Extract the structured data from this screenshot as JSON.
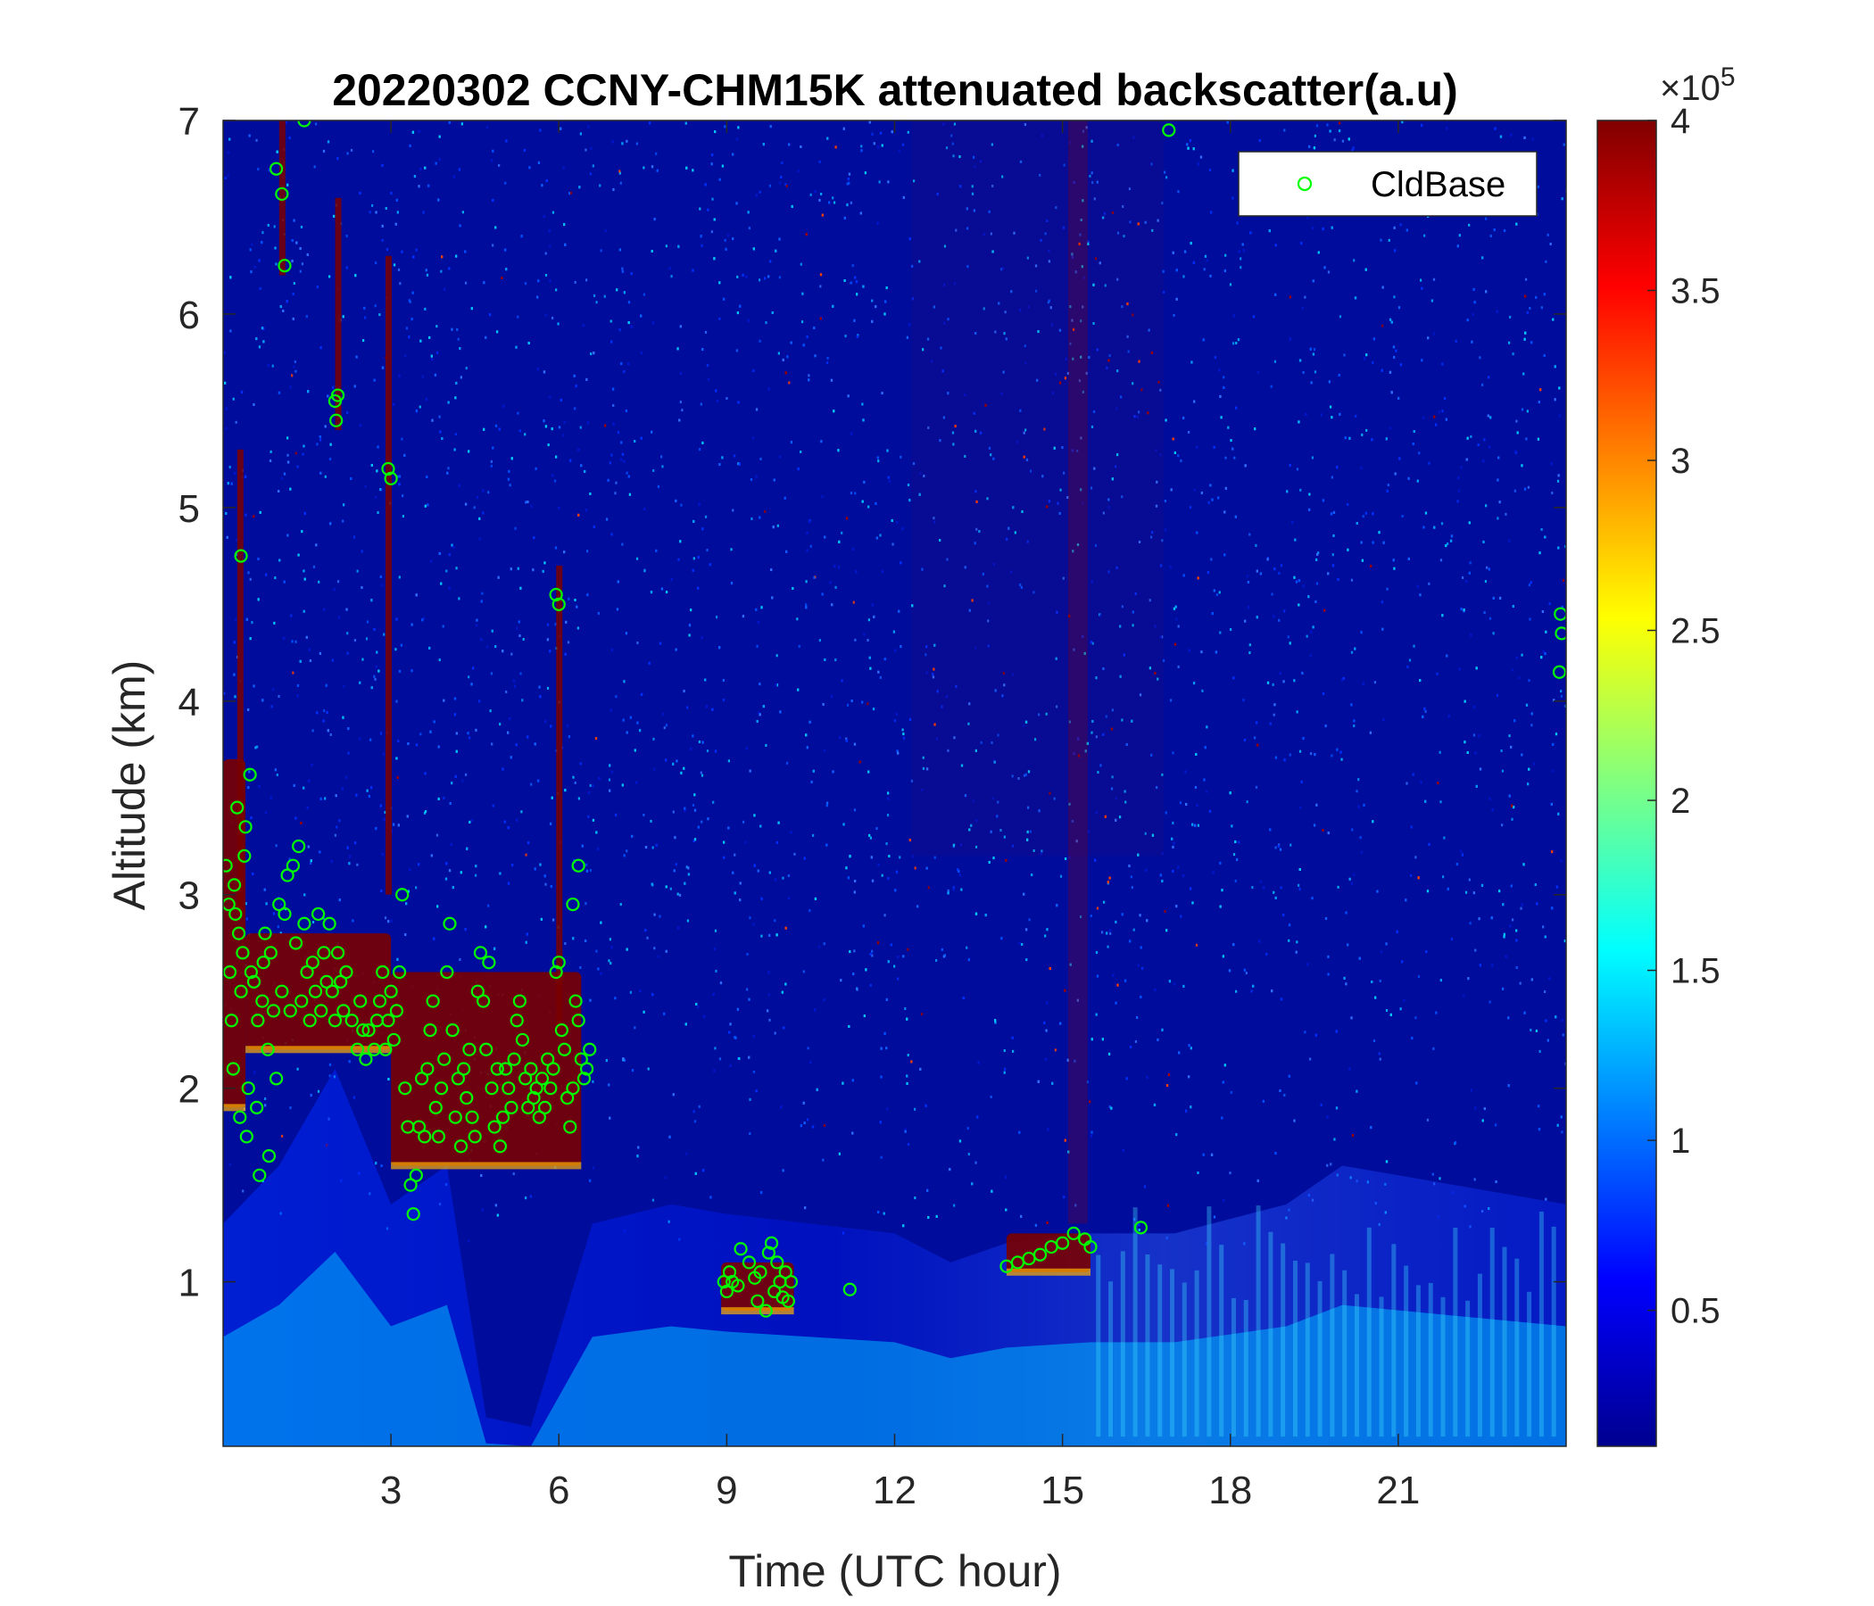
{
  "chart_data": {
    "type": "heatmap",
    "title": "20220302 CCNY-CHM15K attenuated backscatter(a.u)",
    "xlabel": "Time (UTC hour)",
    "ylabel": "Altitude (km)",
    "xlim": [
      0,
      24
    ],
    "ylim": [
      0.15,
      7
    ],
    "x_ticks": [
      3,
      6,
      9,
      12,
      15,
      18,
      21
    ],
    "y_ticks": [
      1,
      2,
      3,
      4,
      5,
      6,
      7
    ],
    "colorbar": {
      "colormap": "jet",
      "clim": [
        0.1,
        4
      ],
      "ticks": [
        0.5,
        1,
        1.5,
        2,
        2.5,
        3,
        3.5,
        4
      ],
      "exponent_label": "×10",
      "exponent_power": "5",
      "colors": [
        "#00008f",
        "#0000ff",
        "#0080ff",
        "#00ffff",
        "#80ff80",
        "#ffff00",
        "#ff8000",
        "#ff0000",
        "#800000"
      ]
    },
    "legend": {
      "position": "top-right",
      "entries": [
        {
          "label": "CldBase",
          "marker": "circle",
          "color": "#00ff00"
        }
      ]
    },
    "background_features": {
      "high_backscatter_layers": [
        {
          "t_start": 0.0,
          "t_end": 0.4,
          "z_bottom": 1.9,
          "z_top": 3.7
        },
        {
          "t_start": 0.4,
          "t_end": 3.0,
          "z_bottom": 2.2,
          "z_top": 2.8
        },
        {
          "t_start": 3.0,
          "t_end": 6.4,
          "z_bottom": 1.6,
          "z_top": 2.6
        },
        {
          "t_start": 8.9,
          "t_end": 10.2,
          "z_bottom": 0.85,
          "z_top": 1.1
        },
        {
          "t_start": 14.0,
          "t_end": 15.5,
          "z_bottom": 1.05,
          "z_top": 1.25
        }
      ],
      "boundary_layer_top_km": [
        [
          0.0,
          1.3
        ],
        [
          1.0,
          1.6
        ],
        [
          2.0,
          2.1
        ],
        [
          3.0,
          1.4
        ],
        [
          4.0,
          1.6
        ],
        [
          4.7,
          0.3
        ],
        [
          5.5,
          0.25
        ],
        [
          6.6,
          1.3
        ],
        [
          8.0,
          1.4
        ],
        [
          9.0,
          1.35
        ],
        [
          10.5,
          1.3
        ],
        [
          12.0,
          1.25
        ],
        [
          13.0,
          1.1
        ],
        [
          14.0,
          1.2
        ],
        [
          15.5,
          1.25
        ],
        [
          17.0,
          1.25
        ],
        [
          19.0,
          1.4
        ],
        [
          20.0,
          1.6
        ],
        [
          22.0,
          1.5
        ],
        [
          24.0,
          1.4
        ]
      ]
    },
    "series": [
      {
        "name": "CldBase",
        "points": [
          [
            0.05,
            3.15
          ],
          [
            0.1,
            2.95
          ],
          [
            0.12,
            2.6
          ],
          [
            0.15,
            2.35
          ],
          [
            0.18,
            2.1
          ],
          [
            0.2,
            3.05
          ],
          [
            0.22,
            2.9
          ],
          [
            0.25,
            3.45
          ],
          [
            0.28,
            2.8
          ],
          [
            0.3,
            1.85
          ],
          [
            0.32,
            2.5
          ],
          [
            0.35,
            2.7
          ],
          [
            0.38,
            3.2
          ],
          [
            0.4,
            3.35
          ],
          [
            0.42,
            1.75
          ],
          [
            0.45,
            2.0
          ],
          [
            0.48,
            3.62
          ],
          [
            0.5,
            2.6
          ],
          [
            0.55,
            2.55
          ],
          [
            0.6,
            1.9
          ],
          [
            0.62,
            2.35
          ],
          [
            0.65,
            1.55
          ],
          [
            0.7,
            2.45
          ],
          [
            0.72,
            2.65
          ],
          [
            0.75,
            2.8
          ],
          [
            0.8,
            2.2
          ],
          [
            0.82,
            1.65
          ],
          [
            0.85,
            2.7
          ],
          [
            0.9,
            2.4
          ],
          [
            0.95,
            2.05
          ],
          [
            1.0,
            2.95
          ],
          [
            1.05,
            2.5
          ],
          [
            1.1,
            2.9
          ],
          [
            1.15,
            3.1
          ],
          [
            1.2,
            2.4
          ],
          [
            1.25,
            3.15
          ],
          [
            1.3,
            2.75
          ],
          [
            1.35,
            3.25
          ],
          [
            1.4,
            2.45
          ],
          [
            1.45,
            2.85
          ],
          [
            1.5,
            2.6
          ],
          [
            1.55,
            2.35
          ],
          [
            1.6,
            2.65
          ],
          [
            1.65,
            2.5
          ],
          [
            1.7,
            2.9
          ],
          [
            1.75,
            2.4
          ],
          [
            1.8,
            2.7
          ],
          [
            1.85,
            2.55
          ],
          [
            1.9,
            2.85
          ],
          [
            1.95,
            2.5
          ],
          [
            2.0,
            2.35
          ],
          [
            2.05,
            2.7
          ],
          [
            2.1,
            2.55
          ],
          [
            2.15,
            2.4
          ],
          [
            2.2,
            2.6
          ],
          [
            2.3,
            2.35
          ],
          [
            2.4,
            2.2
          ],
          [
            2.45,
            2.45
          ],
          [
            2.5,
            2.3
          ],
          [
            2.55,
            2.15
          ],
          [
            2.6,
            2.3
          ],
          [
            2.7,
            2.2
          ],
          [
            2.75,
            2.35
          ],
          [
            2.8,
            2.45
          ],
          [
            2.85,
            2.6
          ],
          [
            2.9,
            2.2
          ],
          [
            2.95,
            2.35
          ],
          [
            3.0,
            2.5
          ],
          [
            3.05,
            2.25
          ],
          [
            3.1,
            2.4
          ],
          [
            3.15,
            2.6
          ],
          [
            3.2,
            3.0
          ],
          [
            3.25,
            2.0
          ],
          [
            3.3,
            1.8
          ],
          [
            3.35,
            1.5
          ],
          [
            3.4,
            1.35
          ],
          [
            3.45,
            1.55
          ],
          [
            3.5,
            1.8
          ],
          [
            3.55,
            2.05
          ],
          [
            3.6,
            1.75
          ],
          [
            3.65,
            2.1
          ],
          [
            3.7,
            2.3
          ],
          [
            3.75,
            2.45
          ],
          [
            3.8,
            1.9
          ],
          [
            3.85,
            1.75
          ],
          [
            3.9,
            2.0
          ],
          [
            3.95,
            2.15
          ],
          [
            4.0,
            2.6
          ],
          [
            4.05,
            2.85
          ],
          [
            4.1,
            2.3
          ],
          [
            4.15,
            1.85
          ],
          [
            4.2,
            2.05
          ],
          [
            4.25,
            1.7
          ],
          [
            4.3,
            2.1
          ],
          [
            4.35,
            1.95
          ],
          [
            4.4,
            2.2
          ],
          [
            4.45,
            1.85
          ],
          [
            4.5,
            1.75
          ],
          [
            4.55,
            2.5
          ],
          [
            4.6,
            2.7
          ],
          [
            4.65,
            2.45
          ],
          [
            4.7,
            2.2
          ],
          [
            4.75,
            2.65
          ],
          [
            4.8,
            2.0
          ],
          [
            4.85,
            1.8
          ],
          [
            4.9,
            2.1
          ],
          [
            4.95,
            1.7
          ],
          [
            5.0,
            1.85
          ],
          [
            5.05,
            2.1
          ],
          [
            5.1,
            2.0
          ],
          [
            5.15,
            1.9
          ],
          [
            5.2,
            2.15
          ],
          [
            5.25,
            2.35
          ],
          [
            5.3,
            2.45
          ],
          [
            5.35,
            2.25
          ],
          [
            5.4,
            2.05
          ],
          [
            5.45,
            1.9
          ],
          [
            5.5,
            2.1
          ],
          [
            5.55,
            1.95
          ],
          [
            5.6,
            2.0
          ],
          [
            5.65,
            1.85
          ],
          [
            5.7,
            2.05
          ],
          [
            5.75,
            1.9
          ],
          [
            5.8,
            2.15
          ],
          [
            5.85,
            2.0
          ],
          [
            5.9,
            2.1
          ],
          [
            5.95,
            2.6
          ],
          [
            6.0,
            2.65
          ],
          [
            6.05,
            2.3
          ],
          [
            6.1,
            2.2
          ],
          [
            6.15,
            1.95
          ],
          [
            6.2,
            1.8
          ],
          [
            6.25,
            2.0
          ],
          [
            6.3,
            2.45
          ],
          [
            6.35,
            2.35
          ],
          [
            6.4,
            2.15
          ],
          [
            6.45,
            2.05
          ],
          [
            6.5,
            2.1
          ],
          [
            6.55,
            2.2
          ],
          [
            6.35,
            3.15
          ],
          [
            6.25,
            2.95
          ],
          [
            0.95,
            6.75
          ],
          [
            1.05,
            6.62
          ],
          [
            1.1,
            6.25
          ],
          [
            1.45,
            7.0
          ],
          [
            2.0,
            5.55
          ],
          [
            2.02,
            5.45
          ],
          [
            2.05,
            5.58
          ],
          [
            2.95,
            5.2
          ],
          [
            3.0,
            5.15
          ],
          [
            5.95,
            4.55
          ],
          [
            6.0,
            4.5
          ],
          [
            0.32,
            4.75
          ],
          [
            8.95,
            1.0
          ],
          [
            9.0,
            0.95
          ],
          [
            9.05,
            1.05
          ],
          [
            9.1,
            1.0
          ],
          [
            9.2,
            0.98
          ],
          [
            9.25,
            1.17
          ],
          [
            9.4,
            1.1
          ],
          [
            9.5,
            1.02
          ],
          [
            9.55,
            0.9
          ],
          [
            9.6,
            1.05
          ],
          [
            9.7,
            0.85
          ],
          [
            9.75,
            1.15
          ],
          [
            9.8,
            1.2
          ],
          [
            9.85,
            0.95
          ],
          [
            9.9,
            1.1
          ],
          [
            9.95,
            1.0
          ],
          [
            10.0,
            0.92
          ],
          [
            10.05,
            1.05
          ],
          [
            10.1,
            0.9
          ],
          [
            10.15,
            1.0
          ],
          [
            11.2,
            0.96
          ],
          [
            14.0,
            1.08
          ],
          [
            14.2,
            1.1
          ],
          [
            14.4,
            1.12
          ],
          [
            14.6,
            1.14
          ],
          [
            14.8,
            1.18
          ],
          [
            15.0,
            1.2
          ],
          [
            15.2,
            1.25
          ],
          [
            15.4,
            1.22
          ],
          [
            15.5,
            1.18
          ],
          [
            16.4,
            1.28
          ],
          [
            16.9,
            6.95
          ],
          [
            23.9,
            4.45
          ],
          [
            23.92,
            4.35
          ],
          [
            23.88,
            4.15
          ]
        ]
      }
    ]
  }
}
